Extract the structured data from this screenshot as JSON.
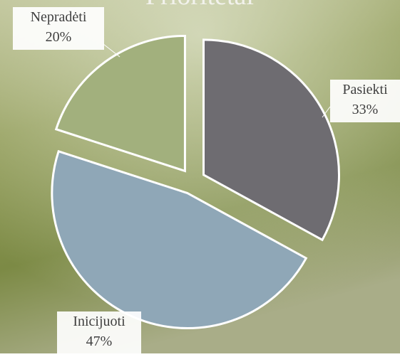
{
  "chart_data": {
    "type": "pie",
    "title": "Prioritetai",
    "categories": [
      "Pasiekti",
      "Inicijuoti",
      "Nepradėti"
    ],
    "values": [
      33,
      47,
      20
    ],
    "value_labels": [
      "33%",
      "47%",
      "20%"
    ],
    "colors": [
      "#6e6c71",
      "#8fa7b7",
      "#a2b07d"
    ]
  }
}
